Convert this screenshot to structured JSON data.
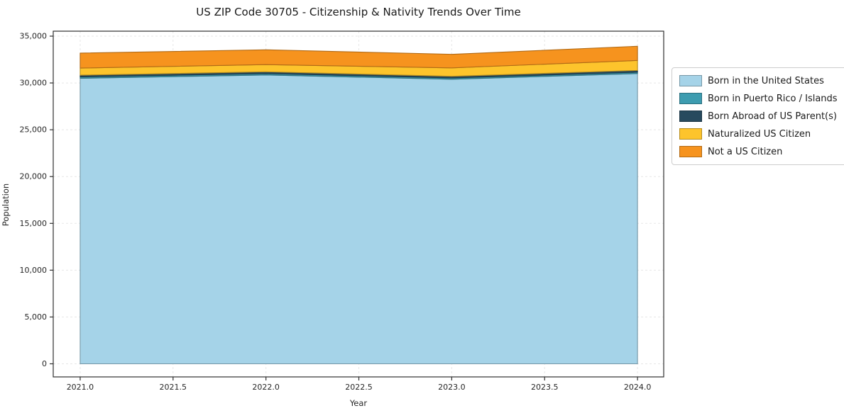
{
  "chart_data": {
    "type": "area",
    "title": "US ZIP Code 30705 - Citizenship & Nativity Trends Over Time",
    "xlabel": "Year",
    "ylabel": "Population",
    "x": [
      2021,
      2022,
      2023,
      2024
    ],
    "series": [
      {
        "name": "Born in the United States",
        "color": "#a5d3e8",
        "values": [
          30500,
          30850,
          30400,
          31000
        ]
      },
      {
        "name": "Born in Puerto Rico / Islands",
        "color": "#3d9cb0",
        "values": [
          150,
          150,
          140,
          150
        ]
      },
      {
        "name": "Born Abroad of US Parent(s)",
        "color": "#274a5e",
        "values": [
          180,
          190,
          170,
          190
        ]
      },
      {
        "name": "Naturalized US Citizen",
        "color": "#fdc42c",
        "values": [
          760,
          770,
          900,
          1060
        ]
      },
      {
        "name": "Not a US Citizen",
        "color": "#f6931e",
        "values": [
          1600,
          1580,
          1450,
          1520
        ]
      }
    ],
    "xlim": [
      2020.855,
      2024.141
    ],
    "ylim": [
      -1400,
      35530
    ],
    "xticks": {
      "values": [
        2021.0,
        2021.5,
        2022.0,
        2022.5,
        2023.0,
        2023.5,
        2024.0
      ],
      "labels": [
        "2021.0",
        "2021.5",
        "2022.0",
        "2022.5",
        "2023.0",
        "2023.5",
        "2024.0"
      ]
    },
    "yticks": {
      "values": [
        0,
        5000,
        10000,
        15000,
        20000,
        25000,
        30000,
        35000
      ],
      "labels": [
        "0",
        "5,000",
        "10,000",
        "15,000",
        "20,000",
        "25,000",
        "30,000",
        "35,000"
      ]
    },
    "grid": true,
    "legend_position": "right",
    "colors": {
      "spine": "#2f2f2f",
      "tick_label": "#262626",
      "gridline": "#e7e7e7",
      "plot_background": "#ffffff"
    }
  }
}
